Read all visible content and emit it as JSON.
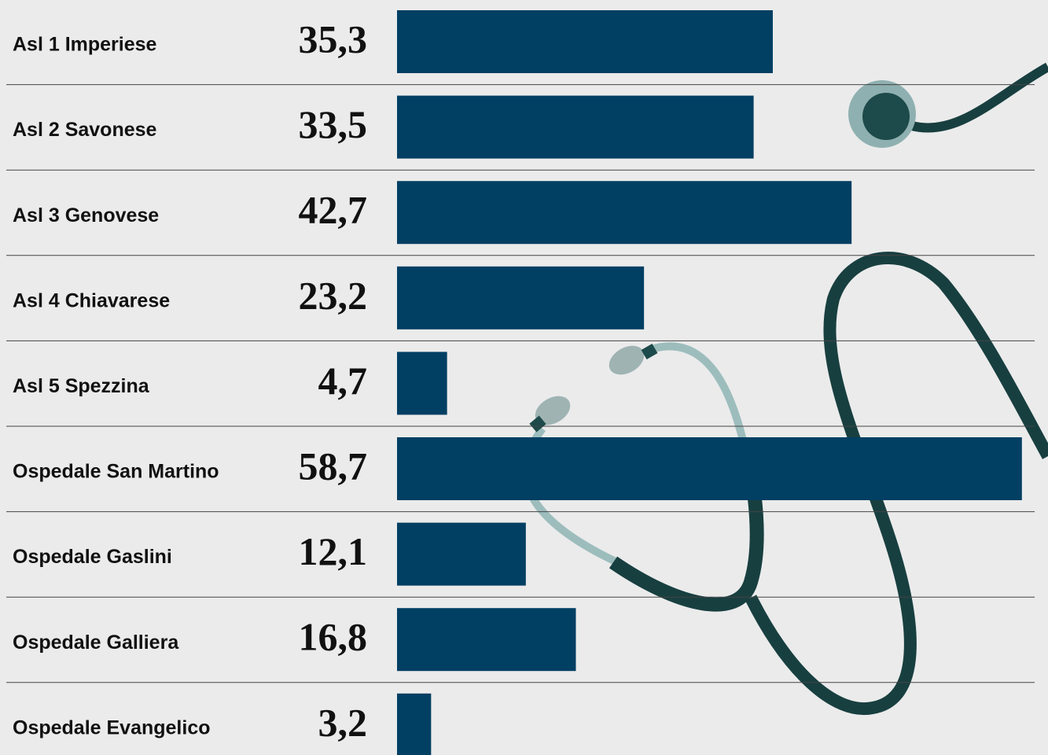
{
  "chart_data": {
    "type": "bar",
    "orientation": "horizontal",
    "categories": [
      "Asl 1 Imperiese",
      "Asl 2 Savonese",
      "Asl 3 Genovese",
      "Asl 4 Chiavarese",
      "Asl 5 Spezzina",
      "Ospedale San Martino",
      "Ospedale Gaslini",
      "Ospedale Galliera",
      "Ospedale Evangelico"
    ],
    "values": [
      35.3,
      33.5,
      42.7,
      23.2,
      4.7,
      58.7,
      12.1,
      16.8,
      3.2
    ],
    "value_labels": [
      "35,3",
      "33,5",
      "42,7",
      "23,2",
      "4,7",
      "58,7",
      "12,1",
      "16,8",
      "3,2"
    ],
    "color": "#013f63"
  }
}
